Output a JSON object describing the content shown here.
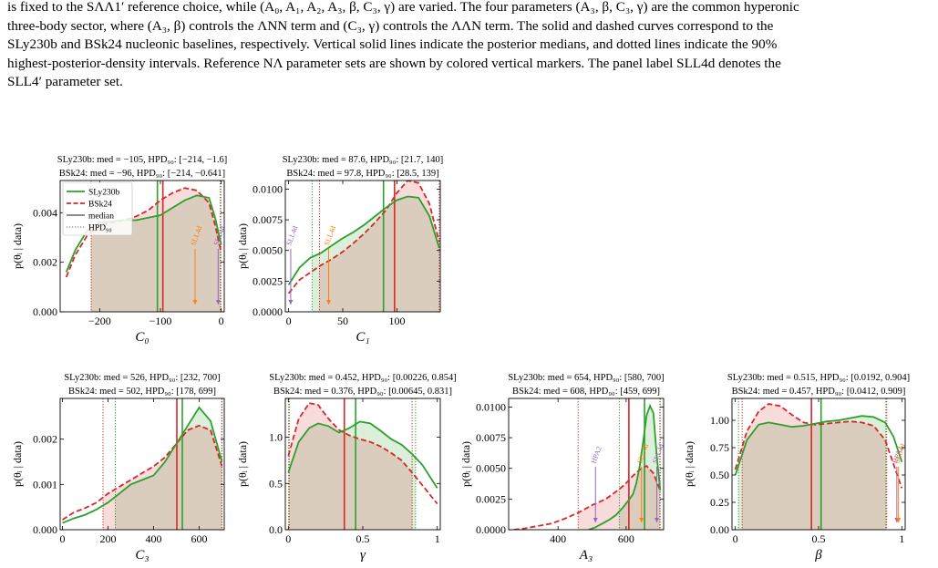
{
  "caption": {
    "lines": [
      "is fixed to the SΛΛ1′ reference choice, while (A₀, A₁, A₂, A₃, β, C₃, γ) are varied. The four parameters (A₃, β, C₃, γ) are the common hyperonic",
      "three-body sector, where (A₃, β) controls the ΛNN term and (C₃, γ) controls the ΛΛN term. The solid and dashed curves correspond to the",
      "SLy230b and BSk24 nucleonic baselines, respectively. Vertical solid lines indicate the posterior medians, and dotted lines indicate the 90%",
      "highest-posterior-density intervals. Reference NΛ parameter sets are shown by colored vertical markers. The panel label SLL4d denotes the",
      "SLL4′ parameter set."
    ]
  },
  "colors": {
    "sly": "#2ca02c",
    "bsk": "#d62728",
    "ref_orange": "#ff7f0e",
    "ref_purple": "#9467bd"
  },
  "legend": {
    "entries": [
      "SLy230b",
      "BSk24",
      "median",
      "HPD₉₀"
    ]
  },
  "chart_data": [
    {
      "type": "area",
      "id": "C0",
      "xlabel": "C₀",
      "ylabel": "p(θᵢ | data)",
      "xlim": [
        -265,
        5
      ],
      "ylim": [
        0,
        0.0053
      ],
      "xticks": [
        -200,
        -100,
        0
      ],
      "yticks": [
        0.0,
        0.002,
        0.004
      ],
      "ytick_labels": [
        "0.000",
        "0.002",
        "0.004"
      ],
      "annot_sly": "SLy230b: med = −105, HPD₉₀: [−214, −1.6]",
      "annot_bsk": "BSk24: med = −96, HPD₉₀: [−214, −0.641]",
      "sly": {
        "median": -105,
        "hpd": [
          -214,
          -1.6
        ],
        "x": [
          -255,
          -240,
          -220,
          -200,
          -180,
          -160,
          -140,
          -120,
          -100,
          -80,
          -60,
          -40,
          -20,
          -10,
          0
        ],
        "y": [
          0.0016,
          0.0025,
          0.0033,
          0.0036,
          0.00365,
          0.0037,
          0.0037,
          0.0038,
          0.0039,
          0.0042,
          0.0045,
          0.0047,
          0.0046,
          0.0038,
          0.0027
        ]
      },
      "bsk": {
        "median": -96,
        "hpd": [
          -214,
          -0.641
        ],
        "x": [
          -255,
          -240,
          -220,
          -200,
          -180,
          -160,
          -140,
          -120,
          -100,
          -80,
          -60,
          -40,
          -20,
          -10,
          0
        ],
        "y": [
          0.0014,
          0.0023,
          0.0031,
          0.0035,
          0.0036,
          0.0037,
          0.00385,
          0.0041,
          0.0045,
          0.0048,
          0.005,
          0.0049,
          0.0044,
          0.0035,
          0.0024
        ]
      },
      "refs": [
        {
          "label": "SLL4d",
          "value": -43,
          "color": "orange"
        },
        {
          "label": "SLL4d",
          "value": -5,
          "color": "purple"
        }
      ]
    },
    {
      "type": "area",
      "id": "C1",
      "xlabel": "C₁",
      "ylabel": "p(θᵢ | data)",
      "xlim": [
        -3,
        140
      ],
      "ylim": [
        0,
        0.0107
      ],
      "xticks": [
        0,
        50,
        100
      ],
      "yticks": [
        0.0,
        0.0025,
        0.005,
        0.0075,
        0.01
      ],
      "ytick_labels": [
        "0.0000",
        "0.0025",
        "0.0050",
        "0.0075",
        "0.0100"
      ],
      "annot_sly": "SLy230b: med = 87.6, HPD₉₀: [21.7, 140]",
      "annot_bsk": "BSk24: med = 97.8, HPD₉₀: [28.5, 139]",
      "sly": {
        "median": 87.6,
        "hpd": [
          21.7,
          140
        ],
        "x": [
          0,
          10,
          20,
          30,
          40,
          50,
          60,
          70,
          80,
          90,
          100,
          110,
          120,
          130,
          139
        ],
        "y": [
          0.0022,
          0.0036,
          0.0044,
          0.0048,
          0.0054,
          0.006,
          0.0065,
          0.0071,
          0.0078,
          0.0085,
          0.0091,
          0.0094,
          0.0093,
          0.0078,
          0.0052
        ]
      },
      "bsk": {
        "median": 97.8,
        "hpd": [
          28.5,
          139
        ],
        "x": [
          0,
          10,
          20,
          30,
          40,
          50,
          60,
          70,
          80,
          90,
          100,
          110,
          120,
          130,
          139
        ],
        "y": [
          0.0015,
          0.0026,
          0.0032,
          0.0038,
          0.0043,
          0.0049,
          0.0056,
          0.0064,
          0.0073,
          0.0083,
          0.0097,
          0.0107,
          0.0105,
          0.0088,
          0.0057
        ]
      },
      "refs": [
        {
          "label": "SLL4d",
          "value": 2,
          "color": "purple"
        },
        {
          "label": "SLL4d",
          "value": 37,
          "color": "orange"
        }
      ]
    },
    {
      "type": "area",
      "id": "C3",
      "xlabel": "C₃",
      "ylabel": "p(θᵢ | data)",
      "xlim": [
        -10,
        710
      ],
      "ylim": [
        0,
        0.0029
      ],
      "xticks": [
        0,
        200,
        400,
        600
      ],
      "yticks": [
        0.0,
        0.001,
        0.002
      ],
      "ytick_labels": [
        "0.000",
        "0.001",
        "0.002"
      ],
      "annot_sly": "SLy230b: med = 526, HPD₉₀: [232, 700]",
      "annot_bsk": "BSk24: med = 502, HPD₉₀: [178, 699]",
      "sly": {
        "median": 526,
        "hpd": [
          232,
          700
        ],
        "x": [
          0,
          50,
          100,
          150,
          200,
          250,
          300,
          350,
          400,
          450,
          500,
          550,
          600,
          650,
          700
        ],
        "y": [
          0.00015,
          0.00025,
          0.00033,
          0.00045,
          0.0006,
          0.0008,
          0.001,
          0.0011,
          0.0012,
          0.0015,
          0.0019,
          0.0023,
          0.0027,
          0.0024,
          0.0015
        ]
      },
      "bsk": {
        "median": 502,
        "hpd": [
          178,
          699
        ],
        "x": [
          0,
          50,
          100,
          150,
          200,
          250,
          300,
          350,
          400,
          450,
          500,
          550,
          600,
          650,
          700
        ],
        "y": [
          0.00022,
          0.00038,
          0.00048,
          0.0006,
          0.0008,
          0.00095,
          0.0011,
          0.00125,
          0.0014,
          0.0016,
          0.0019,
          0.0022,
          0.0023,
          0.0022,
          0.0014
        ]
      },
      "refs": []
    },
    {
      "type": "area",
      "id": "gamma",
      "xlabel": "γ",
      "ylabel": "p(θᵢ | data)",
      "xlim": [
        -0.02,
        1.02
      ],
      "ylim": [
        0,
        1.42
      ],
      "xticks": [
        0.0,
        0.5,
        1.0
      ],
      "yticks": [
        0.0,
        0.5,
        1.0
      ],
      "ytick_labels": [
        "0.0",
        "0.5",
        "1.0"
      ],
      "annot_sly": "SLy230b: med = 0.452, HPD₉₀: [0.00226, 0.854]",
      "annot_bsk": "BSk24: med = 0.376, HPD₉₀: [0.00645, 0.831]",
      "sly": {
        "median": 0.452,
        "hpd": [
          0.00226,
          0.854
        ],
        "x": [
          0.0,
          0.07,
          0.14,
          0.2,
          0.27,
          0.34,
          0.41,
          0.48,
          0.55,
          0.62,
          0.69,
          0.76,
          0.83,
          0.9,
          1.0
        ],
        "y": [
          0.62,
          0.95,
          1.1,
          1.15,
          1.12,
          1.05,
          1.1,
          1.17,
          1.15,
          1.07,
          0.98,
          0.92,
          0.82,
          0.7,
          0.45
        ]
      },
      "bsk": {
        "median": 0.376,
        "hpd": [
          0.00645,
          0.831
        ],
        "x": [
          0.0,
          0.07,
          0.14,
          0.2,
          0.27,
          0.34,
          0.41,
          0.48,
          0.55,
          0.62,
          0.69,
          0.76,
          0.83,
          0.9,
          1.0
        ],
        "y": [
          0.8,
          1.2,
          1.37,
          1.35,
          1.2,
          1.08,
          1.02,
          0.98,
          0.95,
          0.9,
          0.83,
          0.75,
          0.62,
          0.48,
          0.28
        ]
      },
      "refs": []
    },
    {
      "type": "area",
      "id": "A3",
      "xlabel": "A₃",
      "ylabel": "p(θᵢ | data)",
      "xlim": [
        255,
        710
      ],
      "ylim": [
        0,
        0.0107
      ],
      "xticks": [
        400,
        600
      ],
      "yticks": [
        0.0,
        0.0025,
        0.005,
        0.0075,
        0.01
      ],
      "ytick_labels": [
        "0.0000",
        "0.0025",
        "0.0050",
        "0.0075",
        "0.0100"
      ],
      "annot_sly": "SLy230b: med = 654, HPD₉₀: [580, 700]",
      "annot_bsk": "BSk24: med = 608, HPD₉₀: [459, 699]",
      "sly": {
        "median": 654,
        "hpd": [
          580,
          700
        ],
        "x": [
          490,
          510,
          530,
          550,
          570,
          590,
          610,
          620,
          630,
          640,
          650,
          660,
          670,
          680,
          690,
          700
        ],
        "y": [
          0.0,
          0.0002,
          0.0005,
          0.0008,
          0.0012,
          0.0018,
          0.0025,
          0.0029,
          0.0038,
          0.0052,
          0.0072,
          0.0093,
          0.0101,
          0.0095,
          0.006,
          0.0032
        ]
      },
      "bsk": {
        "median": 608,
        "hpd": [
          459,
          699
        ],
        "x": [
          270,
          300,
          340,
          380,
          420,
          460,
          500,
          540,
          580,
          600,
          620,
          640,
          660,
          680,
          700
        ],
        "y": [
          0.0,
          0.0001,
          0.0003,
          0.0005,
          0.0009,
          0.0014,
          0.002,
          0.0025,
          0.0033,
          0.0038,
          0.0044,
          0.0049,
          0.0052,
          0.0046,
          0.0032
        ]
      },
      "refs": [
        {
          "label": "HPA2",
          "value": 510,
          "color": "purple"
        },
        {
          "label": "SLL4d",
          "value": 645,
          "color": "orange"
        },
        {
          "label": "SLL4d",
          "value": 690,
          "color": "purple"
        }
      ]
    },
    {
      "type": "area",
      "id": "beta",
      "xlabel": "β",
      "ylabel": "p(θᵢ | data)",
      "xlim": [
        -0.02,
        1.02
      ],
      "ylim": [
        0,
        1.2
      ],
      "xticks": [
        0.0,
        0.5,
        1.0
      ],
      "yticks": [
        0.0,
        0.25,
        0.5,
        0.75,
        1.0
      ],
      "ytick_labels": [
        "0.00",
        "0.25",
        "0.50",
        "0.75",
        "1.00"
      ],
      "annot_sly": "SLy230b: med = 0.515, HPD₉₀: [0.0192, 0.904]",
      "annot_bsk": "BSk24: med = 0.457, HPD₉₀: [0.0412, 0.909]",
      "sly": {
        "median": 0.515,
        "hpd": [
          0.0192,
          0.904
        ],
        "x": [
          0.0,
          0.07,
          0.14,
          0.2,
          0.27,
          0.34,
          0.41,
          0.48,
          0.55,
          0.62,
          0.69,
          0.76,
          0.83,
          0.9,
          0.95,
          1.0
        ],
        "y": [
          0.5,
          0.82,
          0.96,
          0.98,
          0.96,
          0.94,
          0.95,
          0.97,
          0.99,
          1.0,
          1.02,
          1.04,
          1.03,
          0.98,
          0.85,
          0.62
        ]
      },
      "bsk": {
        "median": 0.457,
        "hpd": [
          0.0412,
          0.909
        ],
        "x": [
          0.0,
          0.07,
          0.14,
          0.2,
          0.27,
          0.34,
          0.41,
          0.48,
          0.55,
          0.62,
          0.69,
          0.76,
          0.83,
          0.9,
          0.95,
          1.0
        ],
        "y": [
          0.55,
          0.9,
          1.08,
          1.15,
          1.13,
          1.05,
          0.98,
          0.96,
          0.97,
          0.98,
          0.99,
          0.98,
          0.95,
          0.82,
          0.6,
          0.38
        ]
      },
      "refs": [
        {
          "label": "HPA2",
          "value": 0.97,
          "color": "purple"
        },
        {
          "label": "SLL4d",
          "value": 0.98,
          "color": "orange"
        }
      ]
    }
  ]
}
